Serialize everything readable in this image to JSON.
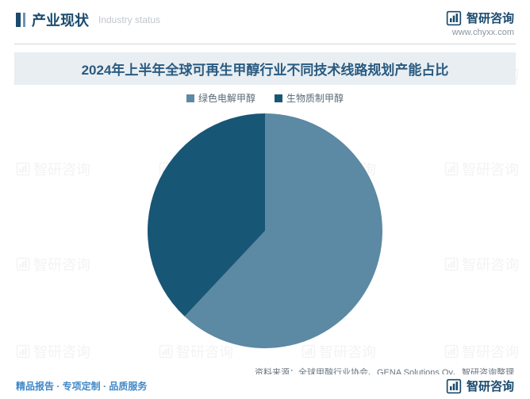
{
  "header": {
    "heading_main": "产业现状",
    "heading_sub": "Industry status",
    "brand_name": "智研咨询",
    "brand_url": "www.chyxx.com"
  },
  "chart": {
    "type": "pie",
    "title": "2024年上半年全球可再生甲醇行业不同技术线路规划产能占比",
    "title_bg": "#e8eef2",
    "title_color": "#2a5a80",
    "title_fontsize": 17,
    "background_color": "#ffffff",
    "radius": 148,
    "start_angle_deg": -90,
    "series": [
      {
        "label": "绿色电解甲醇",
        "value": 62,
        "color": "#5c89a3"
      },
      {
        "label": "生物质制甲醇",
        "value": 38,
        "color": "#185676"
      }
    ],
    "legend": {
      "position": "top-center",
      "fontsize": 12,
      "text_color": "#5a6a76",
      "swatch_size": 10
    },
    "source_prefix": "资料来源：",
    "source_text": "全球甲醇行业协会、GENA Solutions Oy、智研咨询整理"
  },
  "footer": {
    "tagline": "精品报告 · 专项定制 · 品质服务",
    "brand_name": "智研咨询",
    "tagline_color": "#4088c8"
  },
  "brand_colors": {
    "primary": "#1a4a6e",
    "secondary": "#6a94b0",
    "muted": "#c0c6cc"
  },
  "watermark": {
    "text": "智研咨询",
    "color": "#e8e8e8",
    "opacity": 0.5
  }
}
